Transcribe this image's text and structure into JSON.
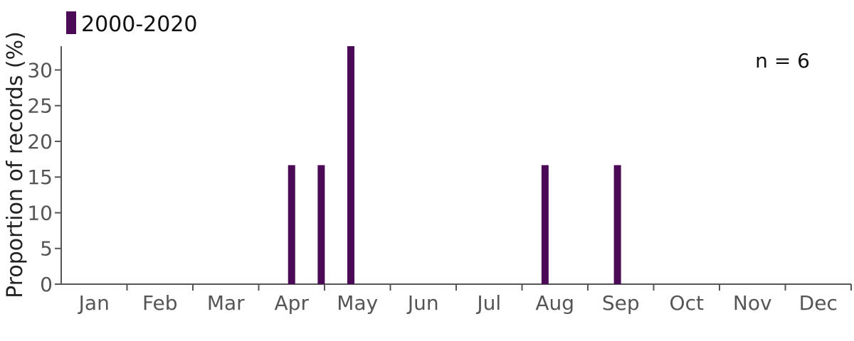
{
  "chart_data": {
    "type": "bar",
    "categories": [
      "Jan",
      "Feb",
      "Mar",
      "Apr",
      "May",
      "Jun",
      "Jul",
      "Aug",
      "Sep",
      "Oct",
      "Nov",
      "Dec"
    ],
    "series": [
      {
        "name": "2000-2020",
        "color": "#4b0a55",
        "points": [
          {
            "x": 4.0,
            "y": 16.67
          },
          {
            "x": 4.45,
            "y": 16.67
          },
          {
            "x": 4.9,
            "y": 33.33
          },
          {
            "x": 7.85,
            "y": 16.67
          },
          {
            "x": 8.95,
            "y": 16.67
          }
        ]
      }
    ],
    "ylabel": "Proportion of records (%)",
    "xlabel": "",
    "ylim": [
      0,
      33.33
    ],
    "yticks": [
      0,
      5,
      10,
      15,
      20,
      25,
      30
    ],
    "annotation": "n = 6",
    "legend_position": "top-left",
    "grid": false
  }
}
